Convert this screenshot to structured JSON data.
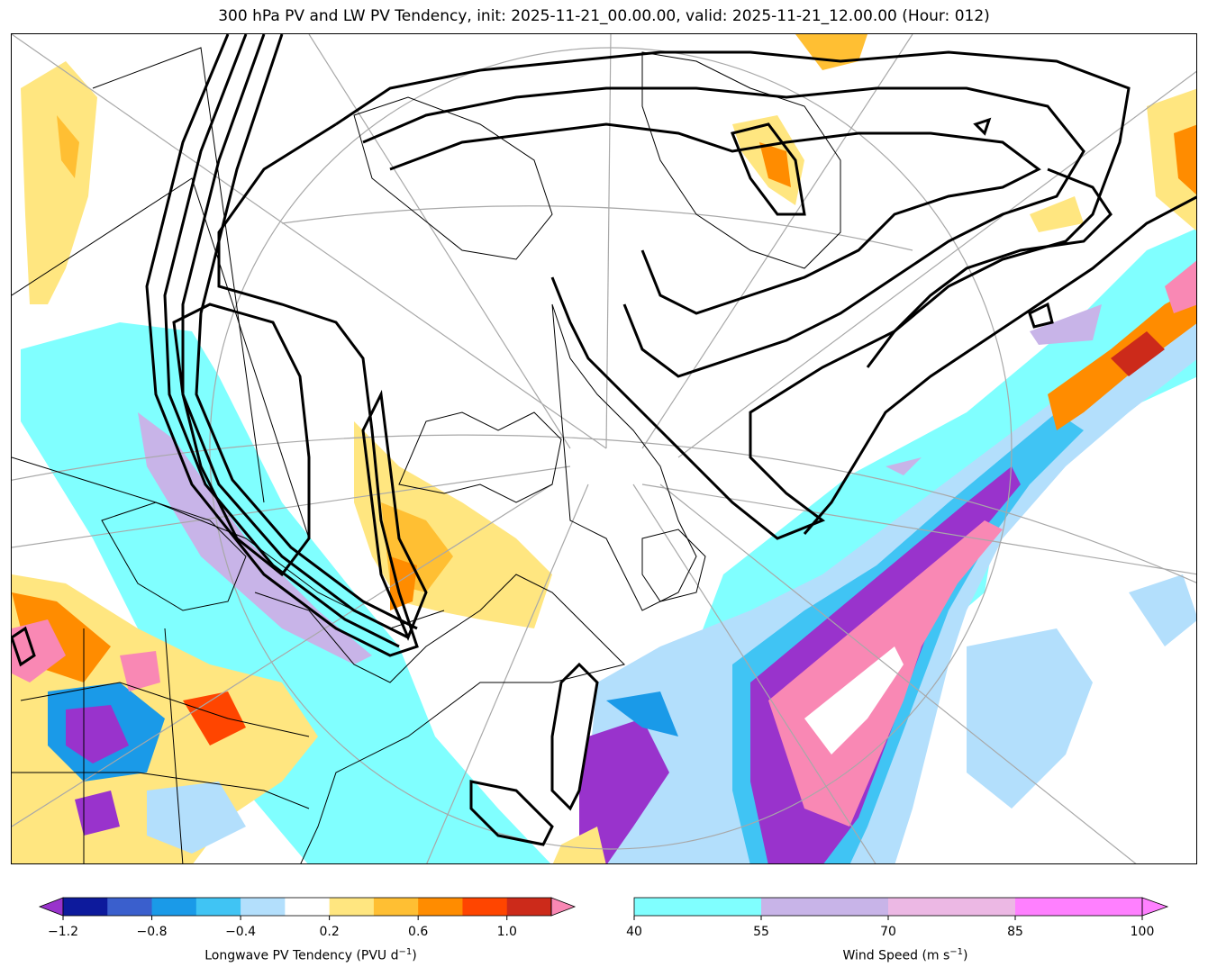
{
  "title": "300 hPa PV and LW PV Tendency, init: 2025-11-21_00.00.00, valid: 2025-11-21_12.00.00 (Hour: 012)",
  "colorbars": {
    "pv_tendency": {
      "label": "Longwave PV Tendency (PVU d",
      "label_sup": "−1",
      "label_end": ")",
      "ticks": [
        "−1.2",
        "−0.8",
        "−0.4",
        "0.2",
        "0.6",
        "1.0"
      ],
      "levels": [
        -1.2,
        -1.0,
        -0.8,
        -0.6,
        -0.4,
        -0.2,
        0.2,
        0.4,
        0.6,
        0.8,
        1.0,
        1.2
      ],
      "colors": [
        "#0d1a9c",
        "#3a5fcd",
        "#1a9ae8",
        "#40c4f4",
        "#b3dffc",
        "#ffffff",
        "#ffe680",
        "#ffbf33",
        "#ff8c00",
        "#ff4500",
        "#cc2a1a"
      ],
      "under_color": "#9933cc",
      "over_color": "#f988b4"
    },
    "wind_speed": {
      "label": "Wind Speed (m s",
      "label_sup": "−1",
      "label_end": ")",
      "ticks": [
        "40",
        "55",
        "70",
        "85",
        "100"
      ],
      "levels": [
        40,
        55,
        70,
        85,
        100
      ],
      "colors": [
        "#80ffff",
        "#c8b4e8",
        "#ecb8e4",
        "#ff80ff"
      ],
      "over_color": "#ff80ff"
    }
  },
  "map": {
    "colors": {
      "jet_cyan": "#80ffff",
      "jet_lavender": "#c8b4e8",
      "jet_pink": "#f988b4",
      "pv_contour": "#000000",
      "graticule": "#a8a8a8",
      "coast": "#000000"
    }
  }
}
